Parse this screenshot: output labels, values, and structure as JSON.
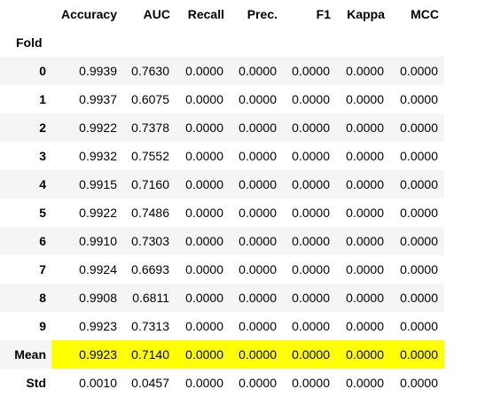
{
  "table": {
    "index_name": "Fold",
    "columns": [
      "Accuracy",
      "AUC",
      "Recall",
      "Prec.",
      "F1",
      "Kappa",
      "MCC"
    ],
    "rows": [
      {
        "index": "0",
        "values": [
          "0.9939",
          "0.7630",
          "0.0000",
          "0.0000",
          "0.0000",
          "0.0000",
          "0.0000"
        ]
      },
      {
        "index": "1",
        "values": [
          "0.9937",
          "0.6075",
          "0.0000",
          "0.0000",
          "0.0000",
          "0.0000",
          "0.0000"
        ]
      },
      {
        "index": "2",
        "values": [
          "0.9922",
          "0.7378",
          "0.0000",
          "0.0000",
          "0.0000",
          "0.0000",
          "0.0000"
        ]
      },
      {
        "index": "3",
        "values": [
          "0.9932",
          "0.7552",
          "0.0000",
          "0.0000",
          "0.0000",
          "0.0000",
          "0.0000"
        ]
      },
      {
        "index": "4",
        "values": [
          "0.9915",
          "0.7160",
          "0.0000",
          "0.0000",
          "0.0000",
          "0.0000",
          "0.0000"
        ]
      },
      {
        "index": "5",
        "values": [
          "0.9922",
          "0.7486",
          "0.0000",
          "0.0000",
          "0.0000",
          "0.0000",
          "0.0000"
        ]
      },
      {
        "index": "6",
        "values": [
          "0.9910",
          "0.7303",
          "0.0000",
          "0.0000",
          "0.0000",
          "0.0000",
          "0.0000"
        ]
      },
      {
        "index": "7",
        "values": [
          "0.9924",
          "0.6693",
          "0.0000",
          "0.0000",
          "0.0000",
          "0.0000",
          "0.0000"
        ]
      },
      {
        "index": "8",
        "values": [
          "0.9908",
          "0.6811",
          "0.0000",
          "0.0000",
          "0.0000",
          "0.0000",
          "0.0000"
        ]
      },
      {
        "index": "9",
        "values": [
          "0.9923",
          "0.7313",
          "0.0000",
          "0.0000",
          "0.0000",
          "0.0000",
          "0.0000"
        ]
      },
      {
        "index": "Mean",
        "values": [
          "0.9923",
          "0.7140",
          "0.0000",
          "0.0000",
          "0.0000",
          "0.0000",
          "0.0000"
        ],
        "highlight": true
      },
      {
        "index": "Std",
        "values": [
          "0.0010",
          "0.0457",
          "0.0000",
          "0.0000",
          "0.0000",
          "0.0000",
          "0.0000"
        ]
      }
    ],
    "highlight_color": "#ffff00"
  }
}
